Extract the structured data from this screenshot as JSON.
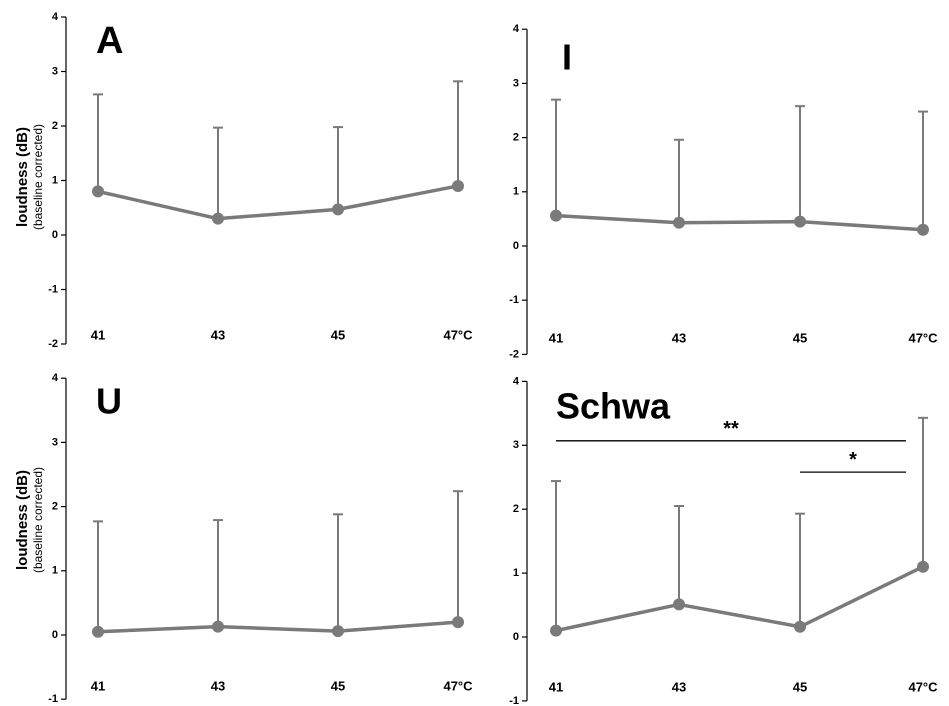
{
  "figure": {
    "ylabel_main": "loudness (dB)",
    "ylabel_sub": "(baseline corrected)"
  },
  "chart_data": [
    {
      "type": "line",
      "title": "A",
      "categories": [
        "41",
        "43",
        "45",
        "47°C"
      ],
      "series": [
        {
          "values": [
            0.8,
            0.3,
            0.47,
            0.9
          ],
          "error_upper": [
            2.58,
            1.97,
            1.98,
            2.82
          ]
        }
      ],
      "ylim": [
        -2,
        4
      ],
      "yticks": [
        "-2",
        "-1",
        "0",
        "1",
        "2",
        "3",
        "4"
      ],
      "ylabel": "loudness (dB) (baseline corrected)",
      "annotations": [],
      "grid": false,
      "color": "#7a7a7a"
    },
    {
      "type": "line",
      "title": "I",
      "categories": [
        "41",
        "43",
        "45",
        "47°C"
      ],
      "series": [
        {
          "values": [
            0.56,
            0.43,
            0.45,
            0.3
          ],
          "error_upper": [
            2.7,
            1.96,
            2.58,
            2.48
          ]
        }
      ],
      "ylim": [
        -2,
        4
      ],
      "yticks": [
        "-2",
        "-1",
        "0",
        "1",
        "2",
        "3",
        "4"
      ],
      "ylabel": "",
      "annotations": [],
      "grid": false,
      "color": "#7a7a7a"
    },
    {
      "type": "line",
      "title": "U",
      "categories": [
        "41",
        "43",
        "45",
        "47°C"
      ],
      "series": [
        {
          "values": [
            0.05,
            0.13,
            0.06,
            0.2
          ],
          "error_upper": [
            1.77,
            1.79,
            1.88,
            2.24
          ]
        }
      ],
      "ylim": [
        -1,
        4
      ],
      "yticks": [
        "-1",
        "0",
        "1",
        "2",
        "3",
        "4"
      ],
      "ylabel": "loudness (dB) (baseline corrected)",
      "annotations": [],
      "grid": false,
      "color": "#7a7a7a"
    },
    {
      "type": "line",
      "title": "Schwa",
      "categories": [
        "41",
        "43",
        "45",
        "47°C"
      ],
      "series": [
        {
          "values": [
            0.1,
            0.51,
            0.16,
            1.1
          ],
          "error_upper": [
            2.44,
            2.05,
            1.93,
            3.43
          ]
        }
      ],
      "ylim": [
        -1,
        4
      ],
      "yticks": [
        "-1",
        "0",
        "1",
        "2",
        "3",
        "4"
      ],
      "ylabel": "",
      "annotations": [
        {
          "text": "**",
          "from": "41",
          "to": "47°C",
          "y": 3.07
        },
        {
          "text": "*",
          "from": "45",
          "to": "47°C",
          "y": 2.58
        }
      ],
      "grid": false,
      "color": "#7a7a7a"
    }
  ]
}
